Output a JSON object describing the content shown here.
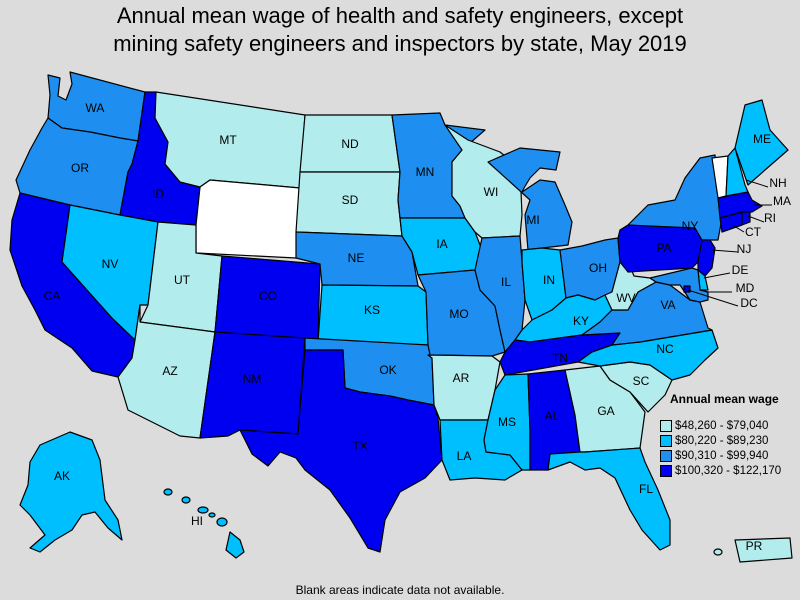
{
  "title": {
    "line1": "Annual mean wage of health and safety engineers, except",
    "line2": "mining safety engineers and inspectors by state, May 2019"
  },
  "colors": {
    "tier1": "#b3ecec",
    "tier2": "#00bfff",
    "tier3": "#1e8ff0",
    "tier4": "#0000f0",
    "no_data": "#ffffff",
    "background": "#dcdcdc"
  },
  "legend": {
    "title": "Annual mean wage",
    "items": [
      {
        "label": "$48,260 - $79,040",
        "color": "#b3ecec"
      },
      {
        "label": "$80,220 - $89,230",
        "color": "#00bfff"
      },
      {
        "label": "$90,310 - $99,940",
        "color": "#1e8ff0"
      },
      {
        "label": "$100,320 - $122,170",
        "color": "#0000f0"
      }
    ]
  },
  "note": "Blank areas indicate data not available.",
  "states": {
    "WA": {
      "label": "WA",
      "tier": 3
    },
    "OR": {
      "label": "OR",
      "tier": 3
    },
    "CA": {
      "label": "CA",
      "tier": 4
    },
    "ID": {
      "label": "ID",
      "tier": 4
    },
    "NV": {
      "label": "NV",
      "tier": 2
    },
    "MT": {
      "label": "MT",
      "tier": 1
    },
    "WY": {
      "label": "",
      "tier": 0
    },
    "UT": {
      "label": "UT",
      "tier": 1
    },
    "AZ": {
      "label": "AZ",
      "tier": 1
    },
    "CO": {
      "label": "CO",
      "tier": 4
    },
    "NM": {
      "label": "NM",
      "tier": 4
    },
    "ND": {
      "label": "ND",
      "tier": 1
    },
    "SD": {
      "label": "SD",
      "tier": 1
    },
    "NE": {
      "label": "NE",
      "tier": 3
    },
    "KS": {
      "label": "KS",
      "tier": 2
    },
    "OK": {
      "label": "OK",
      "tier": 3
    },
    "TX": {
      "label": "TX",
      "tier": 4
    },
    "MN": {
      "label": "MN",
      "tier": 3
    },
    "IA": {
      "label": "IA",
      "tier": 2
    },
    "MO": {
      "label": "MO",
      "tier": 3
    },
    "AR": {
      "label": "AR",
      "tier": 1
    },
    "LA": {
      "label": "LA",
      "tier": 2
    },
    "WI": {
      "label": "WI",
      "tier": 1
    },
    "IL": {
      "label": "IL",
      "tier": 3
    },
    "MI": {
      "label": "MI",
      "tier": 3
    },
    "IN": {
      "label": "IN",
      "tier": 2
    },
    "OH": {
      "label": "OH",
      "tier": 3
    },
    "KY": {
      "label": "KY",
      "tier": 2
    },
    "TN": {
      "label": "TN",
      "tier": 4
    },
    "MS": {
      "label": "MS",
      "tier": 2
    },
    "AL": {
      "label": "AL",
      "tier": 4
    },
    "GA": {
      "label": "GA",
      "tier": 1
    },
    "FL": {
      "label": "FL",
      "tier": 2
    },
    "SC": {
      "label": "SC",
      "tier": 1
    },
    "NC": {
      "label": "NC",
      "tier": 2
    },
    "VA": {
      "label": "VA",
      "tier": 3
    },
    "WV": {
      "label": "WV",
      "tier": 1
    },
    "PA": {
      "label": "PA",
      "tier": 4
    },
    "NY": {
      "label": "NY",
      "tier": 3
    },
    "NJ": {
      "label": "NJ",
      "tier": 4
    },
    "DE": {
      "label": "DE",
      "tier": 2
    },
    "MD": {
      "label": "MD",
      "tier": 3
    },
    "DC": {
      "label": "DC",
      "tier": 4
    },
    "CT": {
      "label": "CT",
      "tier": 4
    },
    "RI": {
      "label": "RI",
      "tier": 4
    },
    "MA": {
      "label": "MA",
      "tier": 4
    },
    "VT": {
      "label": "",
      "tier": 0
    },
    "NH": {
      "label": "NH",
      "tier": 2
    },
    "ME": {
      "label": "ME",
      "tier": 2
    },
    "AK": {
      "label": "AK",
      "tier": 2
    },
    "HI": {
      "label": "HI",
      "tier": 2
    },
    "PR": {
      "label": "PR",
      "tier": 1
    }
  }
}
